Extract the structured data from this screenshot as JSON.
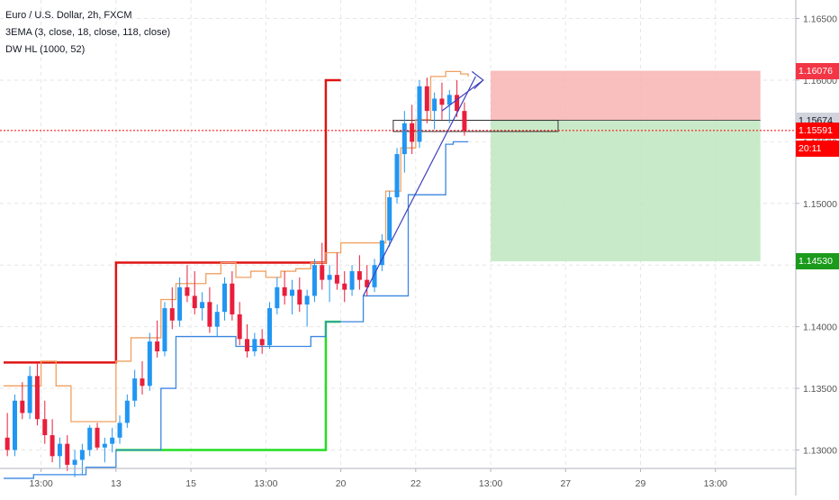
{
  "legend": {
    "symbol": "Euro / U.S. Dollar, 2h, FXCM",
    "indicator1": "3EMA (3, close, 18, close, 118, close)",
    "indicator2": "DW HL (1000, 52)"
  },
  "price_axis": {
    "ticks": [
      "1.16500",
      "1.16000",
      "1.15500",
      "1.15000",
      "1.14500",
      "1.14000",
      "1.13500",
      "1.13000"
    ],
    "tick_values": [
      1.165,
      1.16,
      1.155,
      1.15,
      1.145,
      1.14,
      1.135,
      1.13
    ],
    "labels": [
      {
        "text": "1.16076",
        "value": 1.16076,
        "bg": "#f23645",
        "fg": "#ffffff"
      },
      {
        "text": "1.15674",
        "value": 1.15674,
        "bg": "#d1d4dc",
        "fg": "#131722"
      },
      {
        "text": "1.15591",
        "value": 1.15591,
        "bg": "#ff0000",
        "fg": "#ffffff"
      },
      {
        "text": "20:11",
        "value": 1.15411,
        "bg": "#ff0000",
        "fg": "#ffffff"
      },
      {
        "text": "1.14530",
        "value": 1.1453,
        "bg": "#1b9a1b",
        "fg": "#ffffff"
      }
    ]
  },
  "time_axis": {
    "labels": [
      "13:00",
      "13",
      "15",
      "13:00",
      "20",
      "22",
      "13:00",
      "27",
      "29",
      "13:00"
    ],
    "bar_index": [
      5,
      15,
      25,
      35,
      45,
      55,
      65,
      75,
      85,
      95
    ]
  },
  "position": {
    "entry": 1.15674,
    "stop": 1.16076,
    "target": 1.1453,
    "stop_color": "#f8b3b3",
    "target_color": "#bfe6bf"
  },
  "current_price": 1.15591,
  "colors": {
    "up": "#2196f3",
    "down": "#e91e3c",
    "ema_orange": "#f0a060",
    "ema_blue": "#3a86e0",
    "high_line": "#e01414",
    "low_line": "#22dd22",
    "trend": "#3f3fbf",
    "grid": "#e6e6e6"
  },
  "chart_data": {
    "type": "candlestick",
    "title": "Euro / U.S. Dollar, 2h, FXCM",
    "ylim": [
      1.1285,
      1.1665
    ],
    "x_range_bars": [
      0,
      105
    ],
    "high_line": [
      {
        "from": 0,
        "to": 15,
        "value": 1.1371
      },
      {
        "from": 15,
        "to": 43,
        "value": 1.1452
      },
      {
        "from": 43,
        "to": 45,
        "value": 1.16
      }
    ],
    "low_line": [
      {
        "from": 15,
        "to": 43,
        "value": 1.13
      },
      {
        "from": 43,
        "to": 45,
        "value": 1.1404
      }
    ],
    "ema_orange": [
      [
        0,
        1.1352
      ],
      [
        3,
        1.1352
      ],
      [
        5,
        1.1372
      ],
      [
        7,
        1.1352
      ],
      [
        9,
        1.1323
      ],
      [
        12,
        1.1323
      ],
      [
        14,
        1.1323
      ],
      [
        15,
        1.1372
      ],
      [
        17,
        1.1391
      ],
      [
        19,
        1.1391
      ],
      [
        21,
        1.1422
      ],
      [
        23,
        1.1435
      ],
      [
        25,
        1.1435
      ],
      [
        27,
        1.1443
      ],
      [
        29,
        1.1452
      ],
      [
        31,
        1.144
      ],
      [
        33,
        1.1445
      ],
      [
        35,
        1.144
      ],
      [
        37,
        1.1445
      ],
      [
        39,
        1.1447
      ],
      [
        41,
        1.1452
      ],
      [
        43,
        1.146
      ],
      [
        45,
        1.1468
      ],
      [
        47,
        1.1468
      ],
      [
        49,
        1.1468
      ],
      [
        51,
        1.151
      ],
      [
        53,
        1.1545
      ],
      [
        55,
        1.1568
      ],
      [
        57,
        1.1603
      ],
      [
        59,
        1.1607
      ],
      [
        61,
        1.1605
      ],
      [
        62,
        1.1603
      ]
    ],
    "ema_blue": [
      [
        0,
        1.1277
      ],
      [
        4,
        1.128
      ],
      [
        8,
        1.128
      ],
      [
        11,
        1.1286
      ],
      [
        15,
        1.13
      ],
      [
        18,
        1.13
      ],
      [
        21,
        1.135
      ],
      [
        23,
        1.1392
      ],
      [
        25,
        1.1392
      ],
      [
        28,
        1.1392
      ],
      [
        29,
        1.1392
      ],
      [
        31,
        1.1384
      ],
      [
        33,
        1.1384
      ],
      [
        36,
        1.1384
      ],
      [
        38,
        1.1384
      ],
      [
        41,
        1.1392
      ],
      [
        43,
        1.1404
      ],
      [
        46,
        1.1404
      ],
      [
        48,
        1.1425
      ],
      [
        50,
        1.1425
      ],
      [
        53,
        1.1425
      ],
      [
        54,
        1.1507
      ],
      [
        56,
        1.1507
      ],
      [
        58,
        1.1507
      ],
      [
        59,
        1.1548
      ],
      [
        60,
        1.155
      ],
      [
        62,
        1.155
      ]
    ],
    "candles": [
      [
        1.131,
        1.133,
        1.1295,
        1.13
      ],
      [
        1.13,
        1.1345,
        1.1295,
        1.134
      ],
      [
        1.134,
        1.1355,
        1.1325,
        1.133
      ],
      [
        1.133,
        1.1368,
        1.1325,
        1.136
      ],
      [
        1.136,
        1.1372,
        1.132,
        1.1325
      ],
      [
        1.1325,
        1.134,
        1.1305,
        1.1312
      ],
      [
        1.1312,
        1.1325,
        1.129,
        1.1295
      ],
      [
        1.1295,
        1.131,
        1.1285,
        1.1305
      ],
      [
        1.1305,
        1.1312,
        1.1283,
        1.1288
      ],
      [
        1.1288,
        1.13,
        1.1278,
        1.1292
      ],
      [
        1.1292,
        1.1305,
        1.128,
        1.13
      ],
      [
        1.13,
        1.132,
        1.1295,
        1.1318
      ],
      [
        1.1318,
        1.1322,
        1.13,
        1.1302
      ],
      [
        1.1302,
        1.131,
        1.129,
        1.1305
      ],
      [
        1.1305,
        1.1318,
        1.1298,
        1.131
      ],
      [
        1.131,
        1.1328,
        1.1305,
        1.1322
      ],
      [
        1.1322,
        1.1345,
        1.1318,
        1.134
      ],
      [
        1.134,
        1.1365,
        1.1335,
        1.1358
      ],
      [
        1.1358,
        1.1372,
        1.1345,
        1.1352
      ],
      [
        1.1352,
        1.1395,
        1.1348,
        1.1388
      ],
      [
        1.1388,
        1.1405,
        1.1375,
        1.138
      ],
      [
        1.138,
        1.142,
        1.1376,
        1.1415
      ],
      [
        1.1415,
        1.1432,
        1.1398,
        1.1405
      ],
      [
        1.1405,
        1.144,
        1.14,
        1.1432
      ],
      [
        1.1432,
        1.145,
        1.142,
        1.1425
      ],
      [
        1.1425,
        1.1445,
        1.141,
        1.1415
      ],
      [
        1.1415,
        1.1428,
        1.1405,
        1.142
      ],
      [
        1.142,
        1.1432,
        1.1395,
        1.14
      ],
      [
        1.14,
        1.1418,
        1.1392,
        1.1412
      ],
      [
        1.1412,
        1.144,
        1.1405,
        1.1435
      ],
      [
        1.1435,
        1.1445,
        1.1405,
        1.141
      ],
      [
        1.141,
        1.142,
        1.1385,
        1.139
      ],
      [
        1.139,
        1.1402,
        1.1375,
        1.138
      ],
      [
        1.138,
        1.1395,
        1.1376,
        1.139
      ],
      [
        1.139,
        1.1398,
        1.1378,
        1.1385
      ],
      [
        1.1385,
        1.142,
        1.1382,
        1.1415
      ],
      [
        1.1415,
        1.144,
        1.141,
        1.1432
      ],
      [
        1.1432,
        1.1445,
        1.1418,
        1.1425
      ],
      [
        1.1425,
        1.1438,
        1.141,
        1.143
      ],
      [
        1.143,
        1.144,
        1.1412,
        1.1418
      ],
      [
        1.1418,
        1.143,
        1.14,
        1.1425
      ],
      [
        1.1425,
        1.1455,
        1.142,
        1.145
      ],
      [
        1.145,
        1.1468,
        1.143,
        1.1438
      ],
      [
        1.1438,
        1.145,
        1.142,
        1.1442
      ],
      [
        1.1442,
        1.146,
        1.143,
        1.1435
      ],
      [
        1.1435,
        1.1445,
        1.142,
        1.143
      ],
      [
        1.143,
        1.145,
        1.1425,
        1.1445
      ],
      [
        1.1445,
        1.1458,
        1.143,
        1.1438
      ],
      [
        1.1438,
        1.145,
        1.1425,
        1.1432
      ],
      [
        1.1432,
        1.1455,
        1.1428,
        1.145
      ],
      [
        1.145,
        1.1475,
        1.1445,
        1.147
      ],
      [
        1.147,
        1.151,
        1.1465,
        1.1505
      ],
      [
        1.1505,
        1.1545,
        1.15,
        1.154
      ],
      [
        1.154,
        1.1575,
        1.1525,
        1.1565
      ],
      [
        1.1565,
        1.158,
        1.154,
        1.155
      ],
      [
        1.155,
        1.16,
        1.1545,
        1.1595
      ],
      [
        1.1595,
        1.1602,
        1.1565,
        1.1575
      ],
      [
        1.1575,
        1.159,
        1.156,
        1.1585
      ],
      [
        1.1585,
        1.1598,
        1.1568,
        1.158
      ],
      [
        1.158,
        1.1592,
        1.1565,
        1.1588
      ],
      [
        1.1588,
        1.16,
        1.157,
        1.1575
      ],
      [
        1.1575,
        1.1582,
        1.1555,
        1.1559
      ]
    ],
    "trend_line": {
      "from": [
        48,
        1.1425
      ],
      "to": [
        63,
        1.1603
      ]
    }
  }
}
